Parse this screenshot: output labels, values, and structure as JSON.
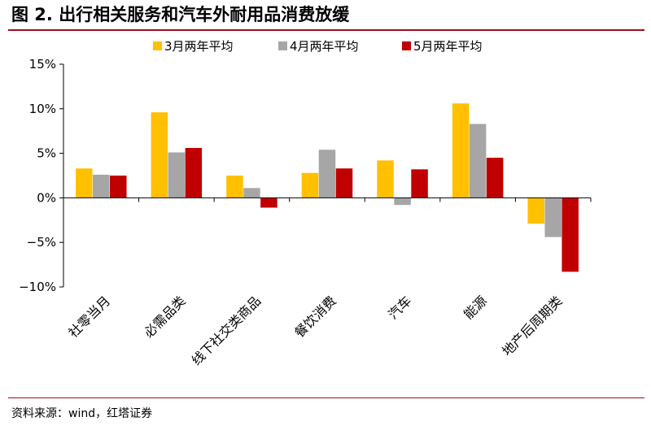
{
  "figure_title": "图 2. 出行相关服务和汽车外耐用品消费放缓",
  "source": "资料来源：wind，红塔证券",
  "colors": {
    "s1": "#FFC000",
    "s2": "#A6A6A6",
    "s3": "#C00000",
    "accent": "#9e0e1c",
    "axis": "#000000"
  },
  "chart_data": {
    "type": "bar",
    "title": "",
    "xlabel": "",
    "ylabel": "",
    "categories": [
      "社零当月",
      "必需品类",
      "线下社交类商品",
      "餐饮消费",
      "汽车",
      "能源",
      "地产后周期类"
    ],
    "series": [
      {
        "name": "3月两年平均",
        "values": [
          3.3,
          9.6,
          2.5,
          2.8,
          4.2,
          10.6,
          -2.9
        ]
      },
      {
        "name": "4月两年平均",
        "values": [
          2.6,
          5.1,
          1.1,
          5.4,
          -0.8,
          8.3,
          -4.4
        ]
      },
      {
        "name": "5月两年平均",
        "values": [
          2.5,
          5.6,
          -1.1,
          3.3,
          3.2,
          4.5,
          -8.3
        ]
      }
    ],
    "ylim": [
      -10,
      15
    ],
    "yticks": [
      -10,
      -5,
      0,
      5,
      10,
      15
    ],
    "ytick_labels": [
      "−10%",
      "−5%",
      "0%",
      "5%",
      "10%",
      "15%"
    ],
    "legend_position": "top",
    "grid": false
  }
}
